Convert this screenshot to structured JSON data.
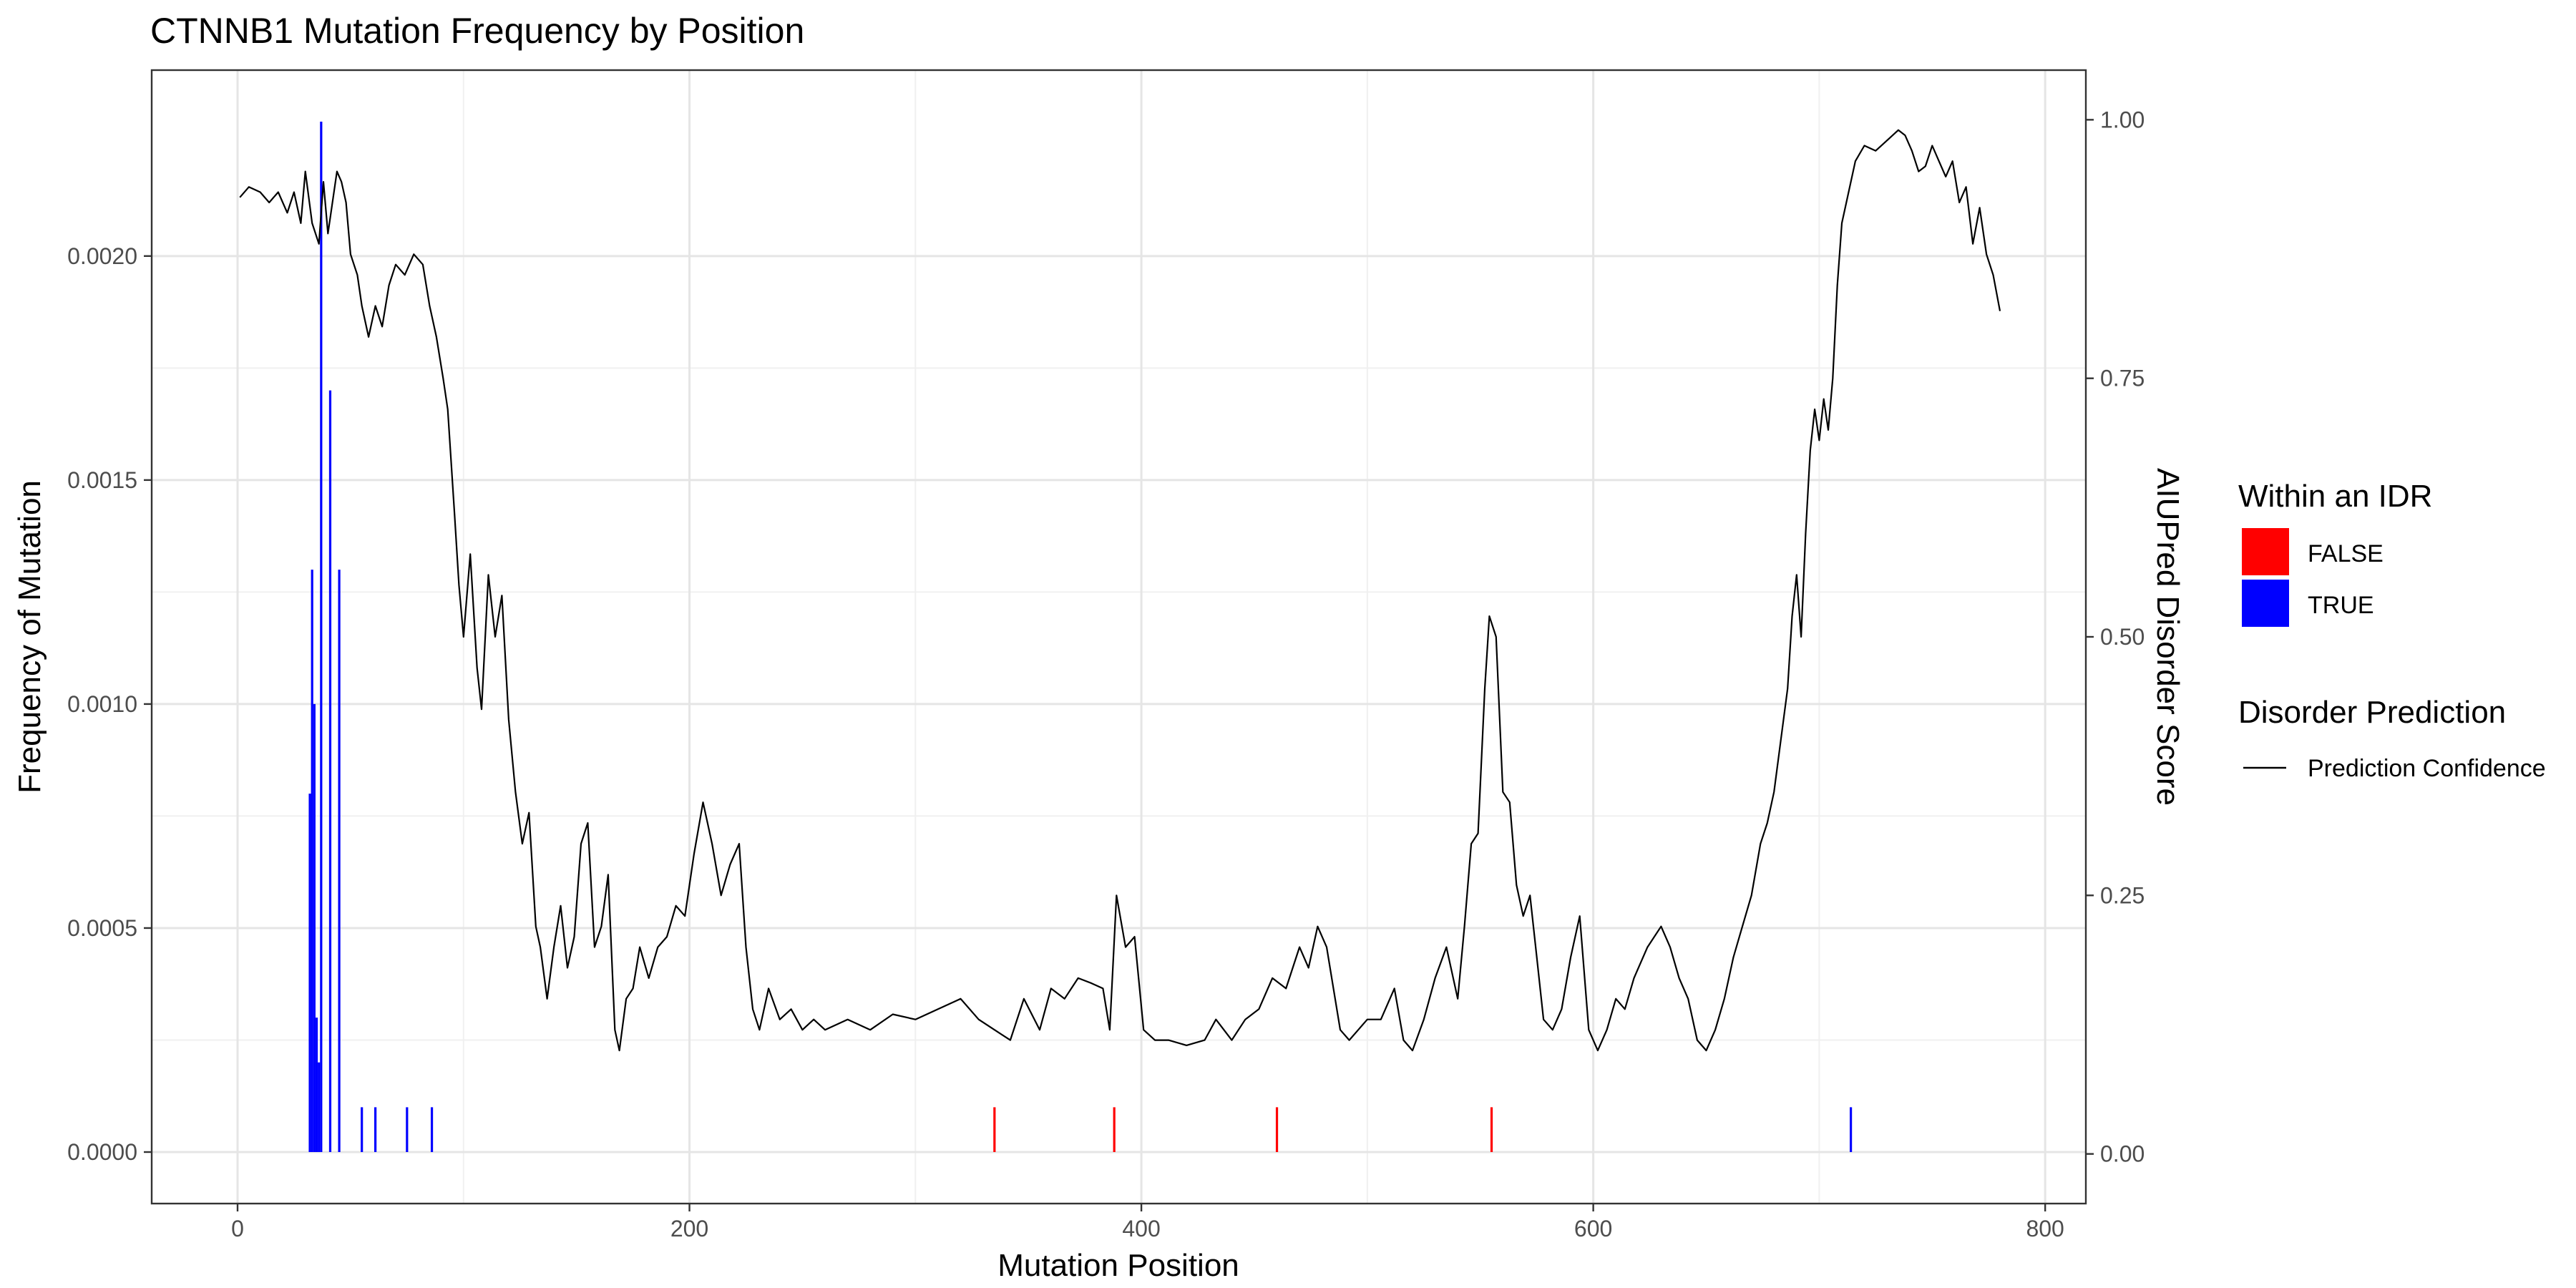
{
  "chart_data": {
    "type": "bar",
    "title": "CTNNB1 Mutation Frequency by Position",
    "xlabel": "Mutation Position",
    "ylabel": "Frequency of Mutation",
    "y2label": "AIUPred Disorder Score",
    "xlim": [
      -38,
      818
    ],
    "ylim": [
      -0.000115,
      0.002415
    ],
    "y2lim": [
      -0.048,
      1.048
    ],
    "x_ticks": [
      0,
      200,
      400,
      600,
      800
    ],
    "y_ticks": [
      0.0,
      0.0005,
      0.001,
      0.0015,
      0.002
    ],
    "y_tick_labels": [
      "0.0000",
      "0.0005",
      "0.0010",
      "0.0015",
      "0.0020"
    ],
    "y2_ticks": [
      0.0,
      0.25,
      0.5,
      0.75,
      1.0
    ],
    "y2_tick_labels": [
      "0.00",
      "0.25",
      "0.50",
      "0.75",
      "1.00"
    ],
    "grid": true,
    "legend_placement": "right",
    "legend": {
      "fill_title": "Within an IDR",
      "fill_entries": [
        {
          "label": "FALSE",
          "color": "#FF0000"
        },
        {
          "label": "TRUE",
          "color": "#0000FF"
        }
      ],
      "line_title": "Disorder Prediction",
      "line_entries": [
        {
          "label": "Prediction Confidence",
          "color": "#000000"
        }
      ]
    },
    "colors": {
      "false": "#FF0000",
      "true": "#0000FF",
      "line": "#000000"
    },
    "bars": [
      {
        "x": 32,
        "y": 0.0008,
        "idr": true
      },
      {
        "x": 33,
        "y": 0.0013,
        "idr": true
      },
      {
        "x": 34,
        "y": 0.001,
        "idr": true
      },
      {
        "x": 35,
        "y": 0.0003,
        "idr": true
      },
      {
        "x": 36,
        "y": 0.0002,
        "idr": true
      },
      {
        "x": 37,
        "y": 0.0023,
        "idr": true
      },
      {
        "x": 41,
        "y": 0.0017,
        "idr": true
      },
      {
        "x": 45,
        "y": 0.0013,
        "idr": true
      },
      {
        "x": 55,
        "y": 0.0001,
        "idr": true
      },
      {
        "x": 61,
        "y": 0.0001,
        "idr": true
      },
      {
        "x": 75,
        "y": 0.0001,
        "idr": true
      },
      {
        "x": 86,
        "y": 0.0001,
        "idr": true
      },
      {
        "x": 335,
        "y": 0.0001,
        "idr": false
      },
      {
        "x": 388,
        "y": 0.0001,
        "idr": false
      },
      {
        "x": 460,
        "y": 0.0001,
        "idr": false
      },
      {
        "x": 555,
        "y": 0.0001,
        "idr": false
      },
      {
        "x": 714,
        "y": 0.0001,
        "idr": true
      }
    ],
    "disorder_line": {
      "name": "Prediction Confidence",
      "points": [
        [
          1,
          0.925
        ],
        [
          5,
          0.935
        ],
        [
          10,
          0.93
        ],
        [
          14,
          0.92
        ],
        [
          18,
          0.93
        ],
        [
          22,
          0.91
        ],
        [
          25,
          0.93
        ],
        [
          28,
          0.9
        ],
        [
          30,
          0.95
        ],
        [
          33,
          0.9
        ],
        [
          36,
          0.88
        ],
        [
          38,
          0.94
        ],
        [
          40,
          0.89
        ],
        [
          44,
          0.95
        ],
        [
          46,
          0.94
        ],
        [
          48,
          0.92
        ],
        [
          50,
          0.87
        ],
        [
          53,
          0.85
        ],
        [
          55,
          0.82
        ],
        [
          58,
          0.79
        ],
        [
          61,
          0.82
        ],
        [
          64,
          0.8
        ],
        [
          67,
          0.84
        ],
        [
          70,
          0.86
        ],
        [
          74,
          0.85
        ],
        [
          78,
          0.87
        ],
        [
          82,
          0.86
        ],
        [
          85,
          0.82
        ],
        [
          88,
          0.79
        ],
        [
          91,
          0.75
        ],
        [
          93,
          0.72
        ],
        [
          96,
          0.62
        ],
        [
          98,
          0.55
        ],
        [
          100,
          0.5
        ],
        [
          103,
          0.58
        ],
        [
          106,
          0.47
        ],
        [
          108,
          0.43
        ],
        [
          111,
          0.56
        ],
        [
          114,
          0.5
        ],
        [
          117,
          0.54
        ],
        [
          120,
          0.42
        ],
        [
          123,
          0.35
        ],
        [
          126,
          0.3
        ],
        [
          129,
          0.33
        ],
        [
          132,
          0.22
        ],
        [
          134,
          0.2
        ],
        [
          137,
          0.15
        ],
        [
          140,
          0.2
        ],
        [
          143,
          0.24
        ],
        [
          146,
          0.18
        ],
        [
          149,
          0.21
        ],
        [
          152,
          0.3
        ],
        [
          155,
          0.32
        ],
        [
          158,
          0.2
        ],
        [
          161,
          0.22
        ],
        [
          164,
          0.27
        ],
        [
          167,
          0.12
        ],
        [
          169,
          0.1
        ],
        [
          172,
          0.15
        ],
        [
          175,
          0.16
        ],
        [
          178,
          0.2
        ],
        [
          182,
          0.17
        ],
        [
          186,
          0.2
        ],
        [
          190,
          0.21
        ],
        [
          194,
          0.24
        ],
        [
          198,
          0.23
        ],
        [
          202,
          0.29
        ],
        [
          206,
          0.34
        ],
        [
          210,
          0.3
        ],
        [
          214,
          0.25
        ],
        [
          218,
          0.28
        ],
        [
          222,
          0.3
        ],
        [
          225,
          0.2
        ],
        [
          228,
          0.14
        ],
        [
          231,
          0.12
        ],
        [
          235,
          0.16
        ],
        [
          240,
          0.13
        ],
        [
          245,
          0.14
        ],
        [
          250,
          0.12
        ],
        [
          255,
          0.13
        ],
        [
          260,
          0.12
        ],
        [
          270,
          0.13
        ],
        [
          280,
          0.12
        ],
        [
          290,
          0.135
        ],
        [
          300,
          0.13
        ],
        [
          310,
          0.14
        ],
        [
          320,
          0.15
        ],
        [
          328,
          0.13
        ],
        [
          335,
          0.12
        ],
        [
          342,
          0.11
        ],
        [
          348,
          0.15
        ],
        [
          355,
          0.12
        ],
        [
          360,
          0.16
        ],
        [
          366,
          0.15
        ],
        [
          372,
          0.17
        ],
        [
          378,
          0.165
        ],
        [
          383,
          0.16
        ],
        [
          386,
          0.12
        ],
        [
          389,
          0.25
        ],
        [
          393,
          0.2
        ],
        [
          397,
          0.21
        ],
        [
          401,
          0.12
        ],
        [
          406,
          0.11
        ],
        [
          412,
          0.11
        ],
        [
          420,
          0.105
        ],
        [
          428,
          0.11
        ],
        [
          433,
          0.13
        ],
        [
          440,
          0.11
        ],
        [
          446,
          0.13
        ],
        [
          452,
          0.14
        ],
        [
          458,
          0.17
        ],
        [
          464,
          0.16
        ],
        [
          470,
          0.2
        ],
        [
          474,
          0.18
        ],
        [
          478,
          0.22
        ],
        [
          482,
          0.2
        ],
        [
          485,
          0.16
        ],
        [
          488,
          0.12
        ],
        [
          492,
          0.11
        ],
        [
          496,
          0.12
        ],
        [
          500,
          0.13
        ],
        [
          506,
          0.13
        ],
        [
          512,
          0.16
        ],
        [
          516,
          0.11
        ],
        [
          520,
          0.1
        ],
        [
          525,
          0.13
        ],
        [
          530,
          0.17
        ],
        [
          535,
          0.2
        ],
        [
          540,
          0.15
        ],
        [
          543,
          0.22
        ],
        [
          546,
          0.3
        ],
        [
          549,
          0.31
        ],
        [
          552,
          0.45
        ],
        [
          554,
          0.52
        ],
        [
          557,
          0.5
        ],
        [
          560,
          0.35
        ],
        [
          563,
          0.34
        ],
        [
          566,
          0.26
        ],
        [
          569,
          0.23
        ],
        [
          572,
          0.25
        ],
        [
          575,
          0.19
        ],
        [
          578,
          0.13
        ],
        [
          582,
          0.12
        ],
        [
          586,
          0.14
        ],
        [
          590,
          0.19
        ],
        [
          594,
          0.23
        ],
        [
          598,
          0.12
        ],
        [
          602,
          0.1
        ],
        [
          606,
          0.12
        ],
        [
          610,
          0.15
        ],
        [
          614,
          0.14
        ],
        [
          618,
          0.17
        ],
        [
          624,
          0.2
        ],
        [
          630,
          0.22
        ],
        [
          634,
          0.2
        ],
        [
          638,
          0.17
        ],
        [
          642,
          0.15
        ],
        [
          646,
          0.11
        ],
        [
          650,
          0.1
        ],
        [
          654,
          0.12
        ],
        [
          658,
          0.15
        ],
        [
          662,
          0.19
        ],
        [
          666,
          0.22
        ],
        [
          670,
          0.25
        ],
        [
          674,
          0.3
        ],
        [
          677,
          0.32
        ],
        [
          680,
          0.35
        ],
        [
          683,
          0.4
        ],
        [
          686,
          0.45
        ],
        [
          688,
          0.52
        ],
        [
          690,
          0.56
        ],
        [
          692,
          0.5
        ],
        [
          694,
          0.6
        ],
        [
          696,
          0.68
        ],
        [
          698,
          0.72
        ],
        [
          700,
          0.69
        ],
        [
          702,
          0.73
        ],
        [
          704,
          0.7
        ],
        [
          706,
          0.75
        ],
        [
          708,
          0.84
        ],
        [
          710,
          0.9
        ],
        [
          712,
          0.92
        ],
        [
          716,
          0.96
        ],
        [
          720,
          0.975
        ],
        [
          725,
          0.97
        ],
        [
          730,
          0.98
        ],
        [
          735,
          0.99
        ],
        [
          738,
          0.985
        ],
        [
          741,
          0.97
        ],
        [
          744,
          0.95
        ],
        [
          747,
          0.955
        ],
        [
          750,
          0.975
        ],
        [
          753,
          0.96
        ],
        [
          756,
          0.945
        ],
        [
          759,
          0.96
        ],
        [
          762,
          0.92
        ],
        [
          765,
          0.935
        ],
        [
          768,
          0.88
        ],
        [
          771,
          0.915
        ],
        [
          774,
          0.87
        ],
        [
          777,
          0.85
        ],
        [
          780,
          0.815
        ]
      ]
    }
  }
}
